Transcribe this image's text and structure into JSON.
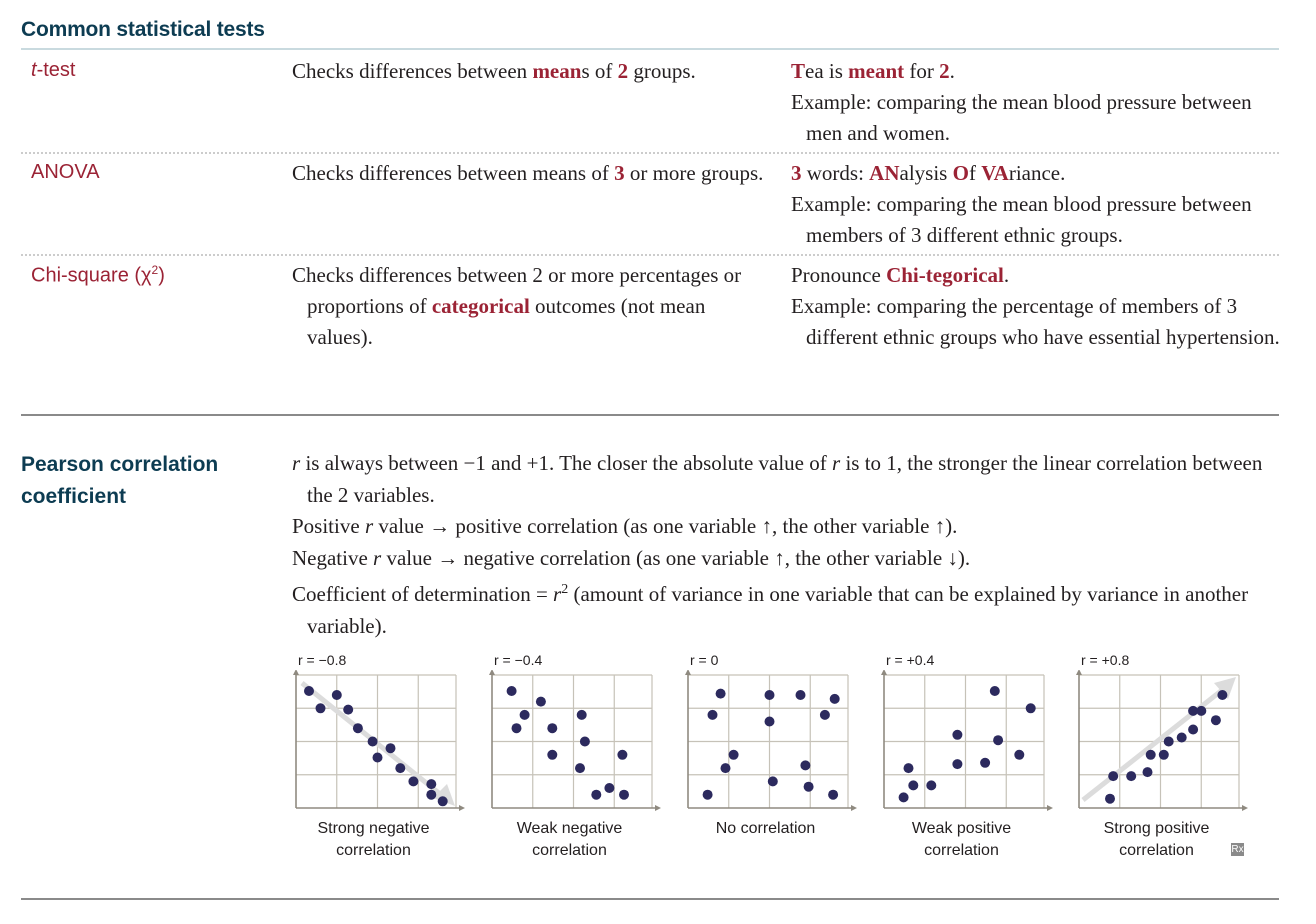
{
  "title": "Common statistical tests",
  "tests": [
    {
      "term": {
        "italic": "t",
        "rest": "-test"
      },
      "desc": [
        "Checks differences between ",
        {
          "r": "mean"
        },
        "s of ",
        {
          "r": "2"
        },
        " groups."
      ],
      "mnemonic": [
        "",
        {
          "r": "T"
        },
        "ea is ",
        {
          "r": "meant"
        },
        " for ",
        {
          "r": "2"
        },
        "."
      ],
      "example": "Example: comparing the mean blood pressure between men and women."
    },
    {
      "term": {
        "plain": "ANOVA"
      },
      "desc": [
        "Checks differences between means of ",
        {
          "r": "3"
        },
        " or more groups."
      ],
      "mnemonic": [
        "",
        {
          "r": "3"
        },
        " words: ",
        {
          "r": "AN"
        },
        "alysis ",
        {
          "r": "O"
        },
        "f ",
        {
          "r": "VA"
        },
        "riance."
      ],
      "example": "Example: comparing the mean blood pressure between members of 3 different ethnic groups."
    },
    {
      "term": {
        "plain": "Chi-square (χ",
        "sup": "2",
        "after": ")"
      },
      "desc": [
        "Checks differences between 2 or more percentages or proportions of ",
        {
          "r": "categorical"
        },
        " outcomes (not mean values)."
      ],
      "mnemonic": [
        "Pronounce ",
        {
          "r": "Chi-tegorical"
        },
        "."
      ],
      "example": "Example: comparing the percentage of members of 3 different ethnic groups who have essential hypertension."
    }
  ],
  "pearson": {
    "title": "Pearson correlation coefficient",
    "lines": [
      [
        {
          "i": "r"
        },
        " is always between −1 and +1. The closer the absolute value of ",
        {
          "i": "r"
        },
        " is to 1, the stronger the linear correlation between the 2 variables."
      ],
      [
        "Positive ",
        {
          "i": "r"
        },
        " value → positive correlation (as one variable ↑, the other variable ↑)."
      ],
      [
        "Negative ",
        {
          "i": "r"
        },
        " value → negative correlation (as one variable ↑, the other variable ↓)."
      ],
      [
        "Coefficient of determination = ",
        {
          "i": "r"
        },
        {
          "sup": "2"
        },
        " (amount of variance in one variable that can be explained by variance in another variable)."
      ]
    ]
  },
  "chart_data": [
    {
      "type": "scatter",
      "r_label": "r = −0.8",
      "caption": [
        "Strong negative",
        "correlation"
      ],
      "arrow": "down",
      "x": [
        0.08,
        0.15,
        0.25,
        0.32,
        0.38,
        0.47,
        0.5,
        0.58,
        0.64,
        0.72,
        0.83,
        0.83,
        0.9
      ],
      "y": [
        0.88,
        0.75,
        0.85,
        0.74,
        0.6,
        0.5,
        0.38,
        0.45,
        0.3,
        0.2,
        0.18,
        0.1,
        0.05
      ]
    },
    {
      "type": "scatter",
      "r_label": "r = −0.4",
      "caption": [
        "Weak negative",
        "correlation"
      ],
      "arrow": "none",
      "x": [
        0.12,
        0.15,
        0.2,
        0.3,
        0.37,
        0.37,
        0.54,
        0.55,
        0.57,
        0.64,
        0.72,
        0.8,
        0.81
      ],
      "y": [
        0.88,
        0.6,
        0.7,
        0.8,
        0.6,
        0.4,
        0.3,
        0.7,
        0.5,
        0.1,
        0.15,
        0.4,
        0.1
      ]
    },
    {
      "type": "scatter",
      "r_label": "r = 0",
      "caption": [
        "No correlation"
      ],
      "arrow": "none",
      "x": [
        0.12,
        0.15,
        0.2,
        0.23,
        0.28,
        0.5,
        0.5,
        0.52,
        0.69,
        0.72,
        0.74,
        0.84,
        0.89,
        0.9
      ],
      "y": [
        0.1,
        0.7,
        0.86,
        0.3,
        0.4,
        0.65,
        0.85,
        0.2,
        0.85,
        0.32,
        0.16,
        0.7,
        0.1,
        0.82
      ]
    },
    {
      "type": "scatter",
      "r_label": "r = +0.4",
      "caption": [
        "Weak positive",
        "correlation"
      ],
      "arrow": "none",
      "x": [
        0.12,
        0.15,
        0.18,
        0.29,
        0.45,
        0.45,
        0.62,
        0.68,
        0.7,
        0.83,
        0.9
      ],
      "y": [
        0.08,
        0.3,
        0.17,
        0.17,
        0.55,
        0.33,
        0.34,
        0.88,
        0.51,
        0.4,
        0.75
      ]
    },
    {
      "type": "scatter",
      "r_label": "r = +0.8",
      "caption": [
        "Strong positive",
        "correlation"
      ],
      "arrow": "up",
      "x": [
        0.19,
        0.21,
        0.32,
        0.42,
        0.44,
        0.52,
        0.55,
        0.63,
        0.7,
        0.7,
        0.75,
        0.84,
        0.88
      ],
      "y": [
        0.07,
        0.24,
        0.24,
        0.27,
        0.4,
        0.4,
        0.5,
        0.53,
        0.59,
        0.73,
        0.73,
        0.66,
        0.85
      ]
    }
  ],
  "badge": "Rx"
}
